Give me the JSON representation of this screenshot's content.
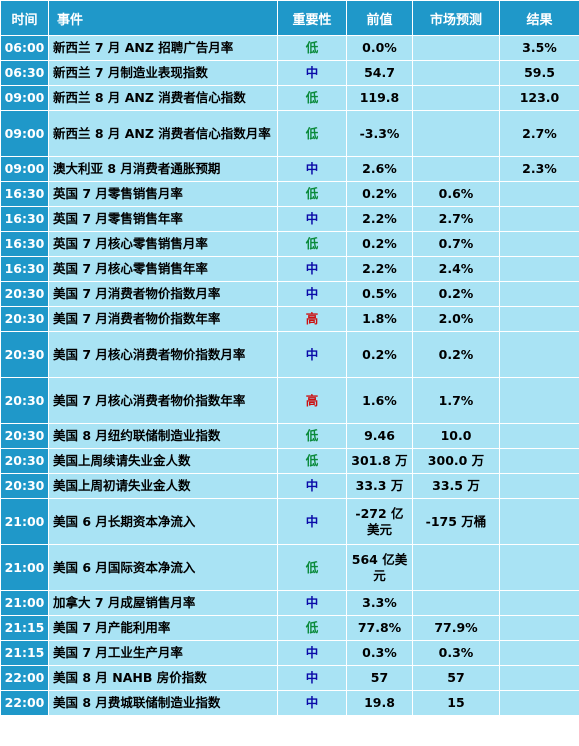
{
  "headers": {
    "time": "时间",
    "event": "事件",
    "importance": "重要性",
    "previous": "前值",
    "forecast": "市场预测",
    "actual": "结果"
  },
  "colors": {
    "header_bg": "#1f98c9",
    "cell_bg": "#a9e3f4",
    "importance_low": "#0a8a3a",
    "importance_medium": "#0a0aa8",
    "importance_high": "#cc1111"
  },
  "rows": [
    {
      "time": "06:00",
      "event": "新西兰 7 月 ANZ 招聘广告月率",
      "importance": "低",
      "previous": "0.0%",
      "forecast": "",
      "actual": "3.5%"
    },
    {
      "time": "06:30",
      "event": "新西兰 7 月制造业表现指数",
      "importance": "中",
      "previous": "54.7",
      "forecast": "",
      "actual": "59.5"
    },
    {
      "time": "09:00",
      "event": "新西兰 8 月 ANZ 消费者信心指数",
      "importance": "低",
      "previous": "119.8",
      "forecast": "",
      "actual": "123.0"
    },
    {
      "time": "09:00",
      "event": "新西兰 8 月 ANZ 消费者信心指数月率",
      "importance": "低",
      "previous": "-3.3%",
      "forecast": "",
      "actual": "2.7%"
    },
    {
      "time": "09:00",
      "event": "澳大利亚 8 月消费者通胀预期",
      "importance": "中",
      "previous": "2.6%",
      "forecast": "",
      "actual": "2.3%"
    },
    {
      "time": "16:30",
      "event": "英国 7 月零售销售月率",
      "importance": "低",
      "previous": "0.2%",
      "forecast": "0.6%",
      "actual": ""
    },
    {
      "time": "16:30",
      "event": "英国 7 月零售销售年率",
      "importance": "中",
      "previous": "2.2%",
      "forecast": "2.7%",
      "actual": ""
    },
    {
      "time": "16:30",
      "event": "英国 7 月核心零售销售月率",
      "importance": "低",
      "previous": "0.2%",
      "forecast": "0.7%",
      "actual": ""
    },
    {
      "time": "16:30",
      "event": "英国 7 月核心零售销售年率",
      "importance": "中",
      "previous": "2.2%",
      "forecast": "2.4%",
      "actual": ""
    },
    {
      "time": "20:30",
      "event": "美国 7 月消费者物价指数月率",
      "importance": "中",
      "previous": "0.5%",
      "forecast": "0.2%",
      "actual": ""
    },
    {
      "time": "20:30",
      "event": "美国 7 月消费者物价指数年率",
      "importance": "高",
      "previous": "1.8%",
      "forecast": "2.0%",
      "actual": ""
    },
    {
      "time": "20:30",
      "event": "美国 7 月核心消费者物价指数月率",
      "importance": "中",
      "previous": "0.2%",
      "forecast": "0.2%",
      "actual": ""
    },
    {
      "time": "20:30",
      "event": "美国 7 月核心消费者物价指数年率",
      "importance": "高",
      "previous": "1.6%",
      "forecast": "1.7%",
      "actual": ""
    },
    {
      "time": "20:30",
      "event": "美国 8 月纽约联储制造业指数",
      "importance": "低",
      "previous": "9.46",
      "forecast": "10.0",
      "actual": ""
    },
    {
      "time": "20:30",
      "event": "美国上周续请失业金人数",
      "importance": "低",
      "previous": "301.8 万",
      "forecast": "300.0 万",
      "actual": ""
    },
    {
      "time": "20:30",
      "event": "美国上周初请失业金人数",
      "importance": "中",
      "previous": "33.3 万",
      "forecast": "33.5 万",
      "actual": ""
    },
    {
      "time": "21:00",
      "event": "美国 6 月长期资本净流入",
      "importance": "中",
      "previous": "-272 亿美元",
      "forecast": "-175 万桶",
      "actual": ""
    },
    {
      "time": "21:00",
      "event": "美国 6 月国际资本净流入",
      "importance": "低",
      "previous": "564 亿美元",
      "forecast": "",
      "actual": ""
    },
    {
      "time": "21:00",
      "event": "加拿大 7 月成屋销售月率",
      "importance": "中",
      "previous": "3.3%",
      "forecast": "",
      "actual": ""
    },
    {
      "time": "21:15",
      "event": "美国 7 月产能利用率",
      "importance": "低",
      "previous": "77.8%",
      "forecast": "77.9%",
      "actual": ""
    },
    {
      "time": "21:15",
      "event": "美国 7 月工业生产月率",
      "importance": "中",
      "previous": "0.3%",
      "forecast": "0.3%",
      "actual": ""
    },
    {
      "time": "22:00",
      "event": "美国 8 月 NAHB 房价指数",
      "importance": "中",
      "previous": "57",
      "forecast": "57",
      "actual": ""
    },
    {
      "time": "22:00",
      "event": "美国 8 月费城联储制造业指数",
      "importance": "中",
      "previous": "19.8",
      "forecast": "15",
      "actual": ""
    }
  ]
}
